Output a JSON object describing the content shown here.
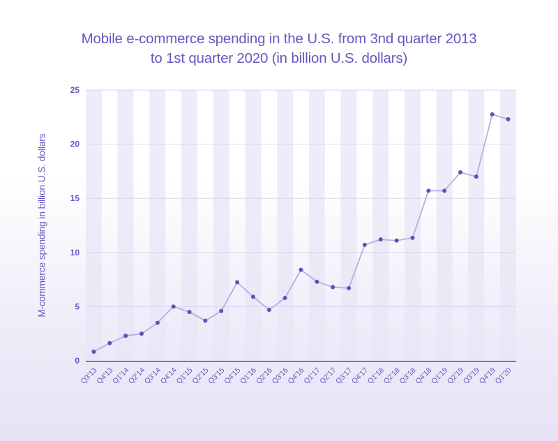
{
  "chart_data": {
    "type": "line",
    "title_line1": "Mobile e-commerce spending in the U.S. from 3nd quarter 2013",
    "title_line2": "to 1st quarter 2020 (in billion U.S. dollars)",
    "xlabel": "",
    "ylabel": "M-commerce spending in billion U.S. dollars",
    "ylim": [
      0,
      25
    ],
    "yticks": [
      0,
      5,
      10,
      15,
      20,
      25
    ],
    "grid": true,
    "legend": "none",
    "categories": [
      "Q3'13",
      "Q4'13",
      "Q1'14",
      "Q2'14",
      "Q3'14",
      "Q4'14",
      "Q1'15",
      "Q2'15",
      "Q3'15",
      "Q4'15",
      "Q1'16",
      "Q2'16",
      "Q3'16",
      "Q4'16",
      "Q1'17",
      "Q2'17",
      "Q3'17",
      "Q4'17",
      "Q1'18",
      "Q2'18",
      "Q3'18",
      "Q4'18",
      "Q1'19",
      "Q2'19",
      "Q3'19",
      "Q4'19",
      "Q1'20"
    ],
    "series": [
      {
        "name": "M-commerce spending",
        "values": [
          0.84,
          1.63,
          2.3,
          2.5,
          3.5,
          5.0,
          4.5,
          3.7,
          4.6,
          7.25,
          5.9,
          4.7,
          5.8,
          8.4,
          7.3,
          6.8,
          6.7,
          10.7,
          11.2,
          11.1,
          11.35,
          15.7,
          15.7,
          17.4,
          17.0,
          22.75,
          22.3
        ]
      }
    ],
    "colors": {
      "title": "#6558bf",
      "line": "#b4aee6",
      "marker": "#5b54b0",
      "grid": "#d9d5f0",
      "stripe": "#e8e5f6",
      "axis": "#7a70cc"
    }
  }
}
